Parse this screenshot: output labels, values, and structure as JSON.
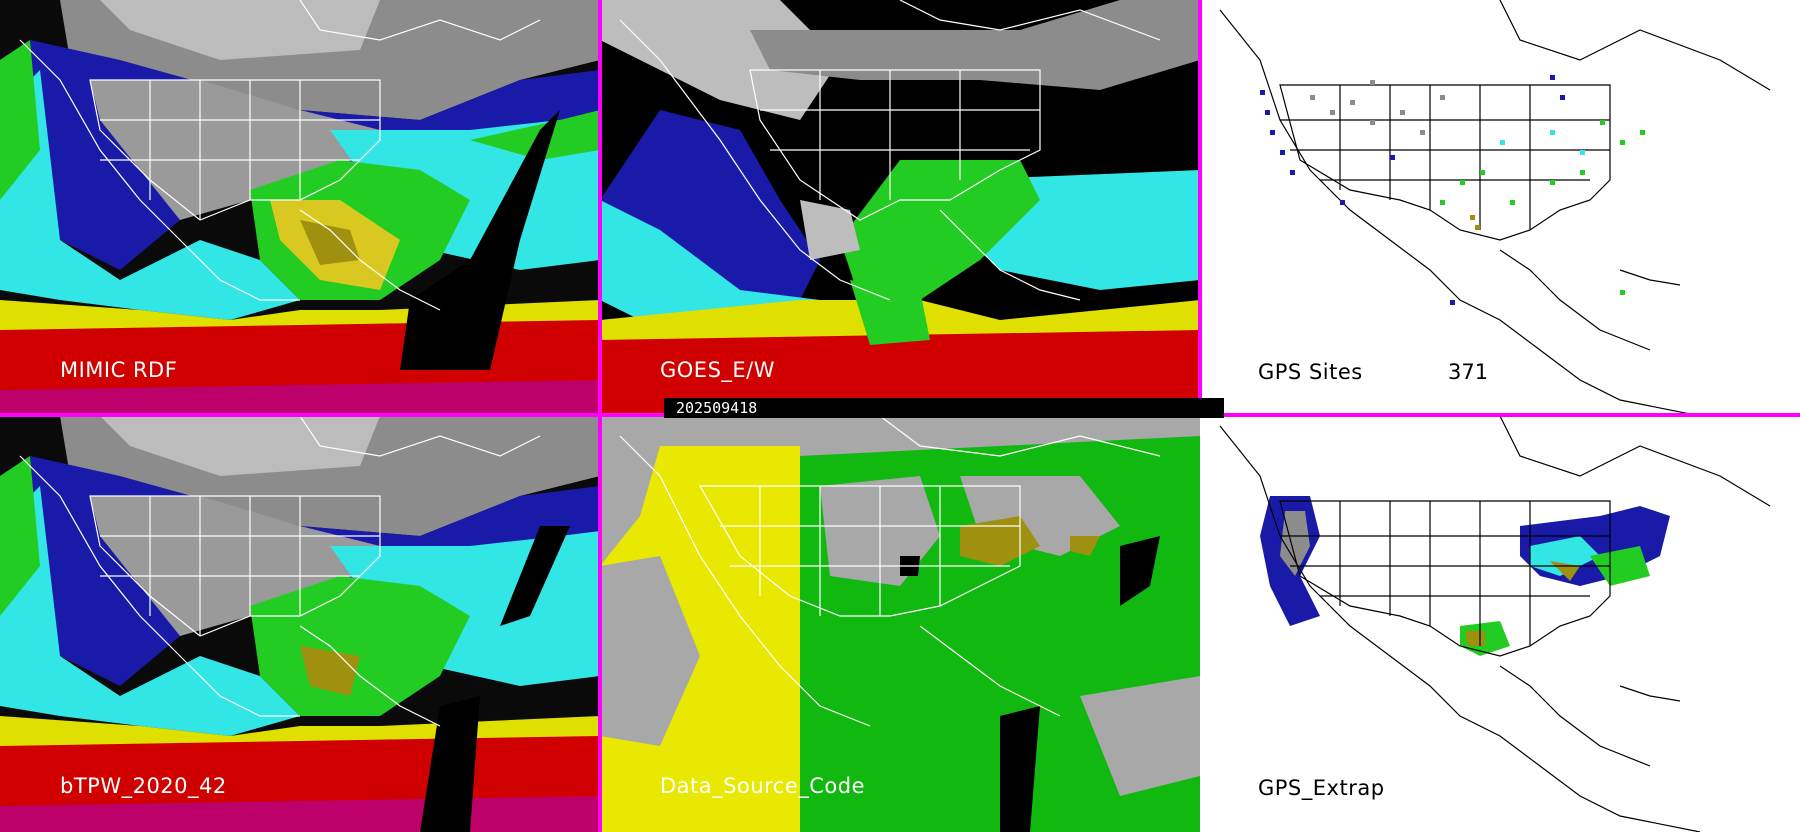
{
  "panels": {
    "top_left": {
      "label": "MIMIC RDF"
    },
    "top_center": {
      "label": "GOES_E/W"
    },
    "top_right": {
      "label": "GPS Sites",
      "count": "371"
    },
    "bottom_left": {
      "label": "bTPW_2020_42"
    },
    "bottom_center": {
      "label": "Data_Source_Code"
    },
    "bottom_right": {
      "label": "GPS_Extrap"
    }
  },
  "timestamp": "202509418",
  "colors": {
    "separator": "#ff00ff",
    "tpw_gray": "#8a8a8a",
    "tpw_blue": "#1a1aa8",
    "tpw_cyan": "#33e6e6",
    "tpw_green": "#22cc22",
    "tpw_yellow": "#e0e000",
    "tpw_olive": "#a09010",
    "tpw_red": "#d00000",
    "tpw_magenta": "#b000b0",
    "dsc_gray": "#a8a8a8",
    "dsc_yellow": "#e8e800",
    "dsc_green": "#10b810"
  }
}
